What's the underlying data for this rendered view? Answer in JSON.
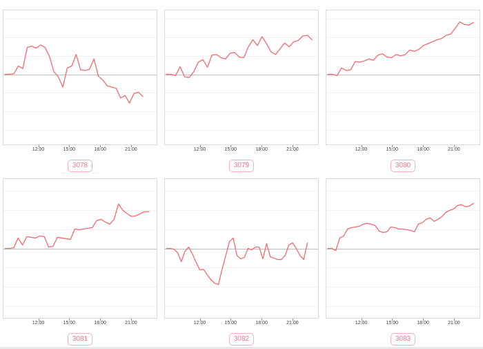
{
  "colors": {
    "line": "#f4696f",
    "badge_border": "#f7afbe",
    "badge_text": "#ed7687",
    "panel_border": "#dcdcdc",
    "gridline": "#f1f1f1",
    "baseline": "#bdbdbd",
    "axis_text": "#3c3c3c",
    "title_text": "#a0a0a0"
  },
  "x_ticks": [
    "12:00",
    "15:00",
    "18:00",
    "21:00"
  ],
  "x_tick_positions_pct": [
    23,
    43,
    63,
    83
  ],
  "gridline_spacing_pct": 13.8,
  "chart_data": [
    {
      "type": "line",
      "title": "3078",
      "title_hint": "··· ·· ···· ·· ··· ····",
      "x_tick_labels": [
        "12:00",
        "15:00",
        "18:00",
        "21:00"
      ],
      "baseline": 0,
      "baseline_frac": 0.477,
      "x_end_pct": 91,
      "ylim": [
        -1.1,
        1.1
      ],
      "values": [
        0,
        0,
        0.01,
        0.13,
        0.09,
        0.42,
        0.44,
        0.41,
        0.46,
        0.42,
        0.28,
        0.04,
        -0.04,
        -0.2,
        0.1,
        0.13,
        0.31,
        0.07,
        0.06,
        0.08,
        0.24,
        -0.03,
        -0.09,
        -0.18,
        -0.2,
        -0.22,
        -0.37,
        -0.33,
        -0.45,
        -0.3,
        -0.28,
        -0.35
      ]
    },
    {
      "type": "line",
      "title": "3079",
      "title_hint": "··· ····",
      "x_tick_labels": [
        "12:00",
        "15:00",
        "18:00",
        "21:00"
      ],
      "baseline": 0,
      "baseline_frac": 0.477,
      "x_end_pct": 96,
      "ylim": [
        -1.1,
        1.1
      ],
      "values": [
        0,
        0,
        -0.02,
        0.12,
        -0.04,
        -0.05,
        0.04,
        0.19,
        0.23,
        0.11,
        0.3,
        0.31,
        0.26,
        0.24,
        0.33,
        0.34,
        0.27,
        0.26,
        0.43,
        0.54,
        0.45,
        0.59,
        0.48,
        0.35,
        0.31,
        0.4,
        0.49,
        0.43,
        0.51,
        0.53,
        0.6,
        0.61,
        0.54
      ]
    },
    {
      "type": "line",
      "title": "3080",
      "title_hint": "··· ····",
      "x_tick_labels": [
        "12:00",
        "15:00",
        "18:00",
        "21:00"
      ],
      "baseline": 0,
      "baseline_frac": 0.477,
      "x_end_pct": 96,
      "ylim": [
        -1.1,
        1.1
      ],
      "values": [
        0,
        0,
        -0.02,
        0.1,
        0.06,
        0.07,
        0.2,
        0.19,
        0.21,
        0.24,
        0.22,
        0.3,
        0.32,
        0.27,
        0.26,
        0.31,
        0.29,
        0.31,
        0.38,
        0.36,
        0.39,
        0.45,
        0.48,
        0.51,
        0.54,
        0.56,
        0.61,
        0.63,
        0.72,
        0.82,
        0.78,
        0.77,
        0.81
      ]
    },
    {
      "type": "line",
      "title": "3081",
      "title_hint": "··· ·· ····· ·· ···· ·····",
      "x_tick_labels": [
        "12:00",
        "15:00",
        "18:00",
        "21:00"
      ],
      "baseline": 0,
      "baseline_frac": 0.5,
      "x_end_pct": 95,
      "ylim": [
        -1.1,
        1.1
      ],
      "values": [
        0,
        0,
        0.01,
        0.15,
        0.05,
        0.17,
        0.16,
        0.15,
        0.18,
        0.17,
        0.02,
        0.03,
        0.16,
        0.15,
        0.14,
        0.13,
        0.28,
        0.27,
        0.28,
        0.29,
        0.3,
        0.4,
        0.42,
        0.38,
        0.35,
        0.42,
        0.64,
        0.55,
        0.5,
        0.46,
        0.47,
        0.5,
        0.53,
        0.53
      ]
    },
    {
      "type": "line",
      "title": "3082",
      "title_hint": "····",
      "x_tick_labels": [
        "12:00",
        "15:00",
        "18:00",
        "21:00"
      ],
      "baseline": 0,
      "baseline_frac": 0.5,
      "x_end_pct": 93,
      "ylim": [
        -1.1,
        1.1
      ],
      "values": [
        0,
        0,
        -0.01,
        -0.06,
        -0.19,
        -0.04,
        0.02,
        -0.08,
        -0.2,
        -0.31,
        -0.3,
        -0.38,
        -0.45,
        -0.5,
        -0.52,
        -0.3,
        -0.1,
        0.1,
        0.15,
        -0.1,
        -0.15,
        -0.13,
        0,
        -0.02,
        0.02,
        0.02,
        -0.15,
        0.07,
        -0.12,
        -0.14,
        -0.16,
        -0.16,
        -0.1,
        0.05,
        0.08,
        0,
        -0.1,
        -0.16,
        0.08
      ]
    },
    {
      "type": "line",
      "title": "3083",
      "title_hint": "····",
      "x_tick_labels": [
        "12:00",
        "15:00",
        "18:00",
        "21:00"
      ],
      "baseline": 0,
      "baseline_frac": 0.5,
      "x_end_pct": 96,
      "ylim": [
        -1.1,
        1.1
      ],
      "values": [
        0,
        0,
        -0.03,
        0.15,
        0.18,
        0.28,
        0.3,
        0.31,
        0.32,
        0.35,
        0.36,
        0.35,
        0.33,
        0.25,
        0.23,
        0.24,
        0.31,
        0.3,
        0.28,
        0.28,
        0.27,
        0.26,
        0.24,
        0.35,
        0.37,
        0.42,
        0.44,
        0.39,
        0.42,
        0.46,
        0.52,
        0.55,
        0.57,
        0.62,
        0.63,
        0.6,
        0.61,
        0.65
      ]
    }
  ]
}
